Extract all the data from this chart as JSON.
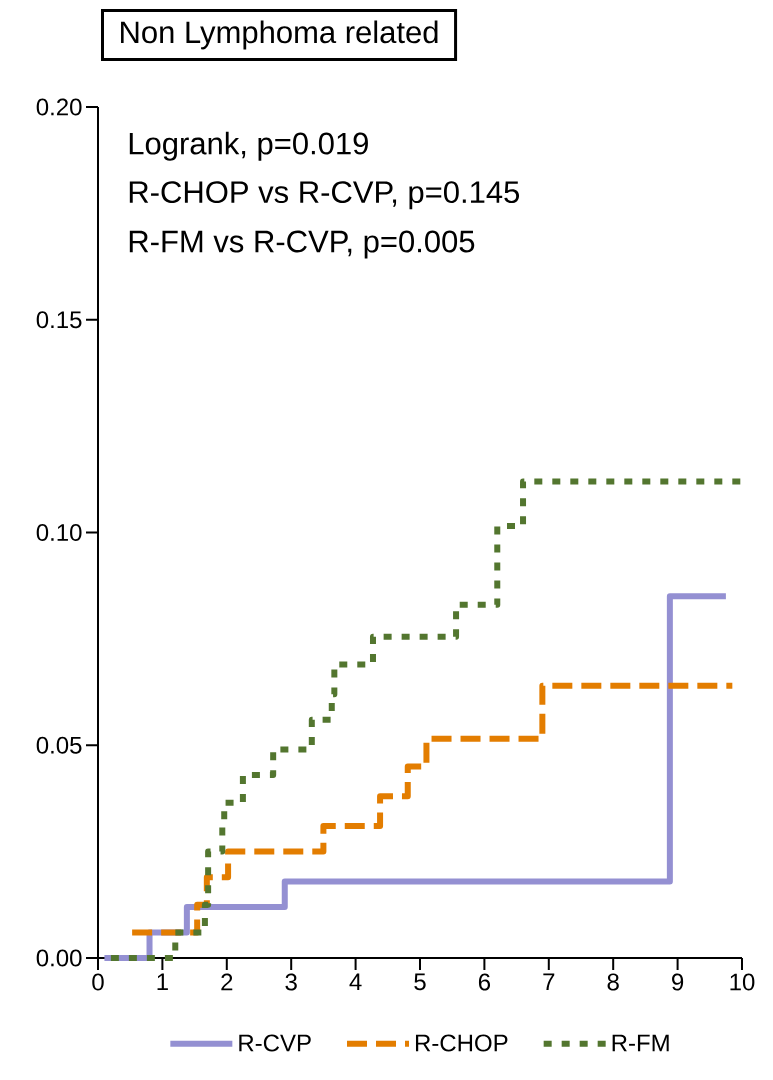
{
  "chart_data": {
    "type": "step",
    "title": "Non Lymphoma related",
    "annotations": [
      "Logrank, p=0.019",
      "R-CHOP vs R-CVP, p=0.145",
      "R-FM vs R-CVP, p=0.005"
    ],
    "xlim": [
      0,
      10
    ],
    "ylim": [
      0,
      0.2
    ],
    "xticks": [
      0,
      1,
      2,
      3,
      4,
      5,
      6,
      7,
      8,
      9,
      10
    ],
    "yticks": [
      {
        "value": 0,
        "label": "0.00"
      },
      {
        "value": 0.05,
        "label": "0.05"
      },
      {
        "value": 0.1,
        "label": "0.10"
      },
      {
        "value": 0.15,
        "label": "0.15"
      },
      {
        "value": 0.2,
        "label": "0.20"
      }
    ],
    "grid": false,
    "legend": "bottom",
    "series": [
      {
        "name": "R-CVP",
        "color": "#9490d2",
        "line_style": "solid",
        "x": [
          0.1,
          0.8,
          1.38,
          2.9,
          8.88,
          9.75
        ],
        "values": [
          0,
          0.006,
          0.012,
          0.018,
          0.085,
          0.085
        ]
      },
      {
        "name": "R-CHOP",
        "color": "#e37d00",
        "line_style": "dashed",
        "x": [
          0.53,
          1.54,
          1.69,
          2.02,
          3.5,
          4.38,
          4.81,
          5.1,
          6.9,
          9.85
        ],
        "values": [
          0.006,
          0.0125,
          0.019,
          0.025,
          0.031,
          0.038,
          0.045,
          0.0515,
          0.064,
          0.064
        ]
      },
      {
        "name": "R-FM",
        "color": "#53762f",
        "line_style": "dotted",
        "x": [
          0.2,
          1.2,
          1.66,
          1.71,
          1.93,
          1.96,
          2.25,
          2.72,
          3.32,
          3.63,
          3.67,
          4.27,
          5.56,
          6.2,
          6.6,
          10.0
        ],
        "values": [
          0,
          0.006,
          0.0125,
          0.025,
          0.031,
          0.0365,
          0.043,
          0.049,
          0.056,
          0.062,
          0.069,
          0.0755,
          0.083,
          0.1015,
          0.112,
          0.112
        ]
      }
    ]
  }
}
